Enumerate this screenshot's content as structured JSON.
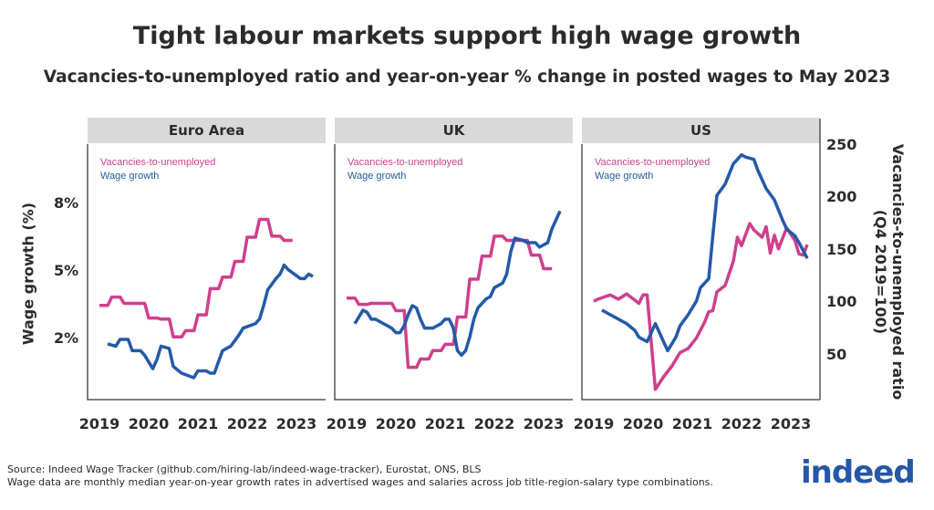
{
  "title": "Tight labour markets support high wage growth",
  "subtitle": "Vacancies-to-unemployed ratio and year-on-year % change in posted wages to May 2023",
  "footer": {
    "source": "Source: Indeed Wage Tracker (github.com/hiring-lab/indeed-wage-tracker), Eurostat, ONS, BLS",
    "note": "Wage data are monthly median year-on-year growth rates in advertised wages and salaries across job title-region-salary type combinations."
  },
  "logo": "indeed",
  "colors": {
    "vacancies": "#cf3f8d",
    "wage": "#2459a8",
    "strip": "#d9d9d9",
    "axis": "#555555"
  },
  "chart_data": {
    "type": "line",
    "title": "Tight labour markets support high wage growth",
    "subtitle": "Vacancies-to-unemployed ratio and year-on-year % change in posted wages to May 2023",
    "x_ticks": [
      "2019",
      "2020",
      "2021",
      "2022",
      "2023"
    ],
    "left_axis": {
      "label": "Wage growth (%)",
      "ticks": [
        "8%",
        "5%",
        "2%"
      ],
      "tick_values": [
        8,
        5,
        2
      ]
    },
    "right_axis": {
      "label": "Vacancies-to-unemployed ratio",
      "label2": "(Q4 2019=100)",
      "ticks": [
        "250",
        "200",
        "150",
        "100",
        "50"
      ],
      "tick_values": [
        250,
        200,
        150,
        100,
        50
      ]
    },
    "legend": {
      "vacancies": "Vacancies-to-unemployed",
      "wage": "Wage growth"
    },
    "grid": false,
    "panels": [
      {
        "name": "Euro Area",
        "vacancies": [
          [
            "2019-Q1",
            98
          ],
          [
            "2019-Q2",
            106
          ],
          [
            "2019-Q3",
            100
          ],
          [
            "2019-Q4",
            100
          ],
          [
            "2020-Q1",
            86
          ],
          [
            "2020-Q2",
            85
          ],
          [
            "2020-Q3",
            68
          ],
          [
            "2020-Q4",
            74
          ],
          [
            "2021-Q1",
            89
          ],
          [
            "2021-Q2",
            114
          ],
          [
            "2021-Q3",
            125
          ],
          [
            "2021-Q4",
            140
          ],
          [
            "2022-Q1",
            163
          ],
          [
            "2022-Q2",
            180
          ],
          [
            "2022-Q3",
            164
          ],
          [
            "2022-Q4",
            160
          ]
        ],
        "wage": [
          [
            "2019-03",
            1.8
          ],
          [
            "2019-05",
            1.7
          ],
          [
            "2019-06",
            2.0
          ],
          [
            "2019-08",
            2.0
          ],
          [
            "2019-09",
            1.5
          ],
          [
            "2019-11",
            1.5
          ],
          [
            "2019-12",
            1.3
          ],
          [
            "2020-02",
            0.7
          ],
          [
            "2020-03",
            1.1
          ],
          [
            "2020-04",
            1.7
          ],
          [
            "2020-06",
            1.6
          ],
          [
            "2020-07",
            0.8
          ],
          [
            "2020-09",
            0.5
          ],
          [
            "2020-12",
            0.3
          ],
          [
            "2021-01",
            0.6
          ],
          [
            "2021-03",
            0.6
          ],
          [
            "2021-04",
            0.5
          ],
          [
            "2021-05",
            0.5
          ],
          [
            "2021-07",
            1.5
          ],
          [
            "2021-09",
            1.7
          ],
          [
            "2021-11",
            2.2
          ],
          [
            "2021-12",
            2.5
          ],
          [
            "2022-03",
            2.7
          ],
          [
            "2022-04",
            2.9
          ],
          [
            "2022-05",
            3.5
          ],
          [
            "2022-06",
            4.2
          ],
          [
            "2022-08",
            4.7
          ],
          [
            "2022-09",
            4.9
          ],
          [
            "2022-10",
            5.3
          ],
          [
            "2022-11",
            5.1
          ],
          [
            "2023-02",
            4.7
          ],
          [
            "2023-03",
            4.7
          ],
          [
            "2023-04",
            4.9
          ],
          [
            "2023-05",
            4.8
          ]
        ]
      },
      {
        "name": "UK",
        "vacancies": [
          [
            "2019-Q1",
            105
          ],
          [
            "2019-Q2",
            99
          ],
          [
            "2019-Q3",
            100
          ],
          [
            "2019-Q4",
            100
          ],
          [
            "2020-Q1",
            93
          ],
          [
            "2020-Q2",
            39
          ],
          [
            "2020-Q3",
            47
          ],
          [
            "2020-Q4",
            55
          ],
          [
            "2021-Q1",
            61
          ],
          [
            "2021-Q2",
            87
          ],
          [
            "2021-Q3",
            123
          ],
          [
            "2021-Q4",
            145
          ],
          [
            "2022-Q1",
            164
          ],
          [
            "2022-Q2",
            160
          ],
          [
            "2022-Q3",
            160
          ],
          [
            "2022-Q4",
            146
          ],
          [
            "2023-Q1",
            133
          ]
        ],
        "wage": [
          [
            "2019-03",
            2.7
          ],
          [
            "2019-05",
            3.3
          ],
          [
            "2019-06",
            3.2
          ],
          [
            "2019-07",
            2.9
          ],
          [
            "2019-08",
            2.9
          ],
          [
            "2019-10",
            2.7
          ],
          [
            "2019-12",
            2.5
          ],
          [
            "2020-01",
            2.3
          ],
          [
            "2020-02",
            2.3
          ],
          [
            "2020-03",
            2.6
          ],
          [
            "2020-04",
            3.1
          ],
          [
            "2020-05",
            3.5
          ],
          [
            "2020-06",
            3.4
          ],
          [
            "2020-07",
            2.9
          ],
          [
            "2020-08",
            2.5
          ],
          [
            "2020-10",
            2.5
          ],
          [
            "2020-12",
            2.7
          ],
          [
            "2021-01",
            2.9
          ],
          [
            "2021-02",
            2.9
          ],
          [
            "2021-03",
            2.5
          ],
          [
            "2021-04",
            1.5
          ],
          [
            "2021-05",
            1.3
          ],
          [
            "2021-06",
            1.5
          ],
          [
            "2021-07",
            2.1
          ],
          [
            "2021-08",
            2.9
          ],
          [
            "2021-09",
            3.4
          ],
          [
            "2021-11",
            3.8
          ],
          [
            "2021-12",
            3.9
          ],
          [
            "2022-01",
            4.3
          ],
          [
            "2022-03",
            4.5
          ],
          [
            "2022-04",
            4.9
          ],
          [
            "2022-05",
            5.9
          ],
          [
            "2022-06",
            6.5
          ],
          [
            "2022-08",
            6.4
          ],
          [
            "2022-09",
            6.3
          ],
          [
            "2022-11",
            6.3
          ],
          [
            "2022-12",
            6.1
          ],
          [
            "2023-02",
            6.3
          ],
          [
            "2023-03",
            6.9
          ],
          [
            "2023-05",
            7.7
          ]
        ]
      },
      {
        "name": "US",
        "vacancies": [
          [
            "2019-01",
            102
          ],
          [
            "2019-02",
            104
          ],
          [
            "2019-05",
            108
          ],
          [
            "2019-07",
            104
          ],
          [
            "2019-09",
            109
          ],
          [
            "2019-12",
            100
          ],
          [
            "2020-01",
            108
          ],
          [
            "2020-02",
            108
          ],
          [
            "2020-04",
            18
          ],
          [
            "2020-06",
            30
          ],
          [
            "2020-08",
            40
          ],
          [
            "2020-10",
            53
          ],
          [
            "2020-12",
            57
          ],
          [
            "2021-02",
            67
          ],
          [
            "2021-04",
            82
          ],
          [
            "2021-05",
            92
          ],
          [
            "2021-06",
            93
          ],
          [
            "2021-07",
            111
          ],
          [
            "2021-09",
            117
          ],
          [
            "2021-11",
            140
          ],
          [
            "2021-12",
            163
          ],
          [
            "2022-01",
            155
          ],
          [
            "2022-03",
            176
          ],
          [
            "2022-04",
            170
          ],
          [
            "2022-06",
            163
          ],
          [
            "2022-07",
            173
          ],
          [
            "2022-08",
            148
          ],
          [
            "2022-09",
            165
          ],
          [
            "2022-10",
            152
          ],
          [
            "2022-12",
            172
          ],
          [
            "2023-02",
            160
          ],
          [
            "2023-03",
            147
          ],
          [
            "2023-04",
            146
          ],
          [
            "2023-05",
            156
          ]
        ],
        "wage": [
          [
            "2019-03",
            3.3
          ],
          [
            "2019-05",
            3.1
          ],
          [
            "2019-07",
            2.9
          ],
          [
            "2019-09",
            2.7
          ],
          [
            "2019-11",
            2.4
          ],
          [
            "2019-12",
            2.1
          ],
          [
            "2020-02",
            1.9
          ],
          [
            "2020-04",
            2.7
          ],
          [
            "2020-05",
            2.3
          ],
          [
            "2020-07",
            1.5
          ],
          [
            "2020-09",
            2.1
          ],
          [
            "2020-10",
            2.6
          ],
          [
            "2020-12",
            3.1
          ],
          [
            "2021-02",
            3.7
          ],
          [
            "2021-03",
            4.3
          ],
          [
            "2021-05",
            4.7
          ],
          [
            "2021-06",
            6.6
          ],
          [
            "2021-07",
            8.4
          ],
          [
            "2021-09",
            8.9
          ],
          [
            "2021-11",
            9.8
          ],
          [
            "2022-01",
            10.2
          ],
          [
            "2022-02",
            10.1
          ],
          [
            "2022-04",
            10.0
          ],
          [
            "2022-05",
            9.5
          ],
          [
            "2022-07",
            8.7
          ],
          [
            "2022-09",
            8.2
          ],
          [
            "2022-11",
            7.3
          ],
          [
            "2022-12",
            6.9
          ],
          [
            "2023-02",
            6.6
          ],
          [
            "2023-03",
            6.3
          ],
          [
            "2023-05",
            5.6
          ]
        ]
      }
    ]
  }
}
